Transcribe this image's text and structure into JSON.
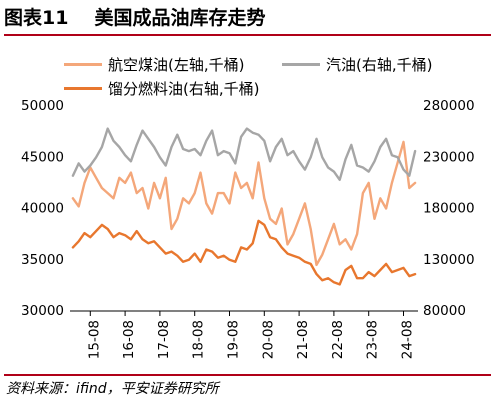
{
  "figure": {
    "number": "图表11",
    "title": "美国成品油库存走势",
    "source": "资料来源：ifind，平安证券研究所"
  },
  "colors": {
    "title_rule": "#b00018",
    "jet_fuel": "#f4a77a",
    "gasoline": "#a6a6a6",
    "distillate": "#e8772e"
  },
  "chart_data": {
    "type": "line",
    "title": "",
    "x_tick_labels": [
      "15-08",
      "16-08",
      "17-08",
      "18-08",
      "19-08",
      "20-08",
      "21-08",
      "22-08",
      "23-08",
      "24-08"
    ],
    "x_range": [
      "2015-01",
      "2025-01"
    ],
    "y_left": {
      "range": [
        30000,
        50000
      ],
      "ticks": [
        "30000",
        "35000",
        "40000",
        "45000",
        "50000"
      ]
    },
    "y_right": {
      "range": [
        80000,
        280000
      ],
      "ticks": [
        "80000",
        "130000",
        "180000",
        "230000",
        "280000"
      ]
    },
    "grid": false,
    "legend_position": "top",
    "series": [
      {
        "name": "航空煤油(左轴,千桶)",
        "axis": "left",
        "color": "#f4a77a",
        "x": [
          "2015-02",
          "2015-04",
          "2015-06",
          "2015-08",
          "2015-10",
          "2015-12",
          "2016-02",
          "2016-04",
          "2016-06",
          "2016-08",
          "2016-10",
          "2016-12",
          "2017-02",
          "2017-04",
          "2017-06",
          "2017-08",
          "2017-10",
          "2017-12",
          "2018-02",
          "2018-04",
          "2018-06",
          "2018-08",
          "2018-10",
          "2018-12",
          "2019-02",
          "2019-04",
          "2019-06",
          "2019-08",
          "2019-10",
          "2019-12",
          "2020-02",
          "2020-04",
          "2020-06",
          "2020-08",
          "2020-10",
          "2020-12",
          "2021-02",
          "2021-04",
          "2021-06",
          "2021-08",
          "2021-10",
          "2021-12",
          "2022-02",
          "2022-04",
          "2022-06",
          "2022-08",
          "2022-10",
          "2022-12",
          "2023-02",
          "2023-04",
          "2023-06",
          "2023-08",
          "2023-10",
          "2023-12",
          "2024-02",
          "2024-04",
          "2024-06",
          "2024-08",
          "2024-10",
          "2024-12"
        ],
        "values": [
          41000,
          40200,
          42500,
          44000,
          43000,
          42000,
          41500,
          41000,
          43000,
          42500,
          43500,
          41500,
          42000,
          40000,
          42500,
          41000,
          43000,
          38000,
          39000,
          41000,
          40500,
          41500,
          43500,
          40500,
          39500,
          41500,
          41500,
          40500,
          43500,
          42000,
          42500,
          41000,
          44500,
          41000,
          39000,
          38500,
          40000,
          36500,
          37500,
          39000,
          40500,
          38000,
          34500,
          35500,
          37000,
          38500,
          36500,
          37000,
          36000,
          37500,
          41500,
          42500,
          39000,
          41000,
          40000,
          42500,
          44500,
          46500,
          42000,
          42500
        ]
      },
      {
        "name": "汽油(右轴,千桶)",
        "axis": "right",
        "color": "#a6a6a6",
        "x": [
          "2015-02",
          "2015-04",
          "2015-06",
          "2015-08",
          "2015-10",
          "2015-12",
          "2016-02",
          "2016-04",
          "2016-06",
          "2016-08",
          "2016-10",
          "2016-12",
          "2017-02",
          "2017-04",
          "2017-06",
          "2017-08",
          "2017-10",
          "2017-12",
          "2018-02",
          "2018-04",
          "2018-06",
          "2018-08",
          "2018-10",
          "2018-12",
          "2019-02",
          "2019-04",
          "2019-06",
          "2019-08",
          "2019-10",
          "2019-12",
          "2020-02",
          "2020-04",
          "2020-06",
          "2020-08",
          "2020-10",
          "2020-12",
          "2021-02",
          "2021-04",
          "2021-06",
          "2021-08",
          "2021-10",
          "2021-12",
          "2022-02",
          "2022-04",
          "2022-06",
          "2022-08",
          "2022-10",
          "2022-12",
          "2023-02",
          "2023-04",
          "2023-06",
          "2023-08",
          "2023-10",
          "2023-12",
          "2024-02",
          "2024-04",
          "2024-06",
          "2024-08",
          "2024-10",
          "2024-12"
        ],
        "values": [
          212000,
          224000,
          216000,
          222000,
          230000,
          240000,
          258000,
          246000,
          240000,
          232000,
          226000,
          242000,
          256000,
          248000,
          240000,
          230000,
          222000,
          240000,
          252000,
          238000,
          236000,
          238000,
          232000,
          246000,
          256000,
          232000,
          236000,
          234000,
          224000,
          250000,
          258000,
          254000,
          252000,
          246000,
          226000,
          240000,
          248000,
          232000,
          236000,
          226000,
          218000,
          230000,
          248000,
          230000,
          220000,
          216000,
          208000,
          228000,
          242000,
          222000,
          220000,
          216000,
          226000,
          240000,
          248000,
          232000,
          230000,
          218000,
          212000,
          236000
        ]
      },
      {
        "name": "馏分燃料油(右轴,千桶)",
        "axis": "right",
        "color": "#e8772e",
        "x": [
          "2015-02",
          "2015-04",
          "2015-06",
          "2015-08",
          "2015-10",
          "2015-12",
          "2016-02",
          "2016-04",
          "2016-06",
          "2016-08",
          "2016-10",
          "2016-12",
          "2017-02",
          "2017-04",
          "2017-06",
          "2017-08",
          "2017-10",
          "2017-12",
          "2018-02",
          "2018-04",
          "2018-06",
          "2018-08",
          "2018-10",
          "2018-12",
          "2019-02",
          "2019-04",
          "2019-06",
          "2019-08",
          "2019-10",
          "2019-12",
          "2020-02",
          "2020-04",
          "2020-06",
          "2020-08",
          "2020-10",
          "2020-12",
          "2021-02",
          "2021-04",
          "2021-06",
          "2021-08",
          "2021-10",
          "2021-12",
          "2022-02",
          "2022-04",
          "2022-06",
          "2022-08",
          "2022-10",
          "2022-12",
          "2023-02",
          "2023-04",
          "2023-06",
          "2023-08",
          "2023-10",
          "2023-12",
          "2024-02",
          "2024-04",
          "2024-06",
          "2024-08",
          "2024-10",
          "2024-12"
        ],
        "values": [
          142000,
          148000,
          156000,
          152000,
          158000,
          164000,
          160000,
          152000,
          156000,
          154000,
          150000,
          158000,
          150000,
          146000,
          148000,
          142000,
          136000,
          138000,
          134000,
          128000,
          130000,
          136000,
          128000,
          140000,
          138000,
          132000,
          134000,
          130000,
          128000,
          142000,
          140000,
          146000,
          168000,
          164000,
          152000,
          150000,
          142000,
          136000,
          134000,
          132000,
          128000,
          126000,
          116000,
          110000,
          112000,
          108000,
          106000,
          120000,
          124000,
          112000,
          112000,
          118000,
          114000,
          120000,
          126000,
          118000,
          120000,
          122000,
          114000,
          116000
        ]
      }
    ]
  }
}
